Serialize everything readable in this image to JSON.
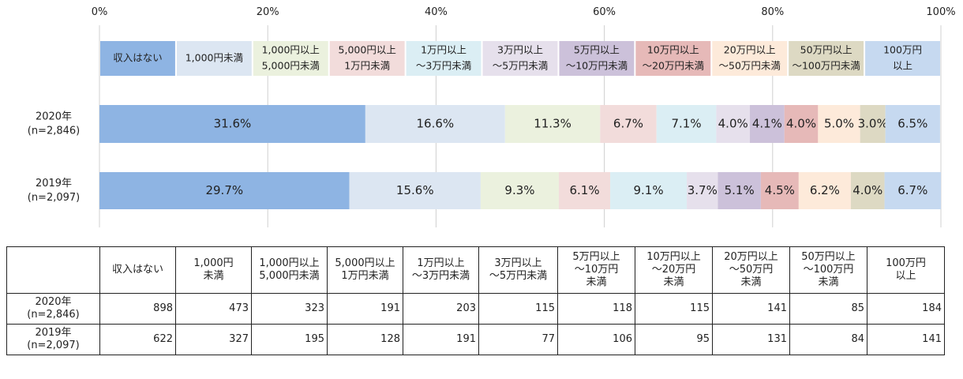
{
  "chart_data": {
    "type": "bar",
    "orientation": "horizontal",
    "stacked": true,
    "percent": true,
    "xlim": [
      0,
      100
    ],
    "x_ticks": [
      "0%",
      "20%",
      "40%",
      "60%",
      "80%",
      "100%"
    ],
    "grid": true,
    "legend_position": "top",
    "categories": [
      "2020年\n(n=2,846)",
      "2019年\n(n=2,097)"
    ],
    "series": [
      {
        "name": "収入はない",
        "values": [
          31.6,
          29.7
        ],
        "labels": [
          "31.6%",
          "29.7%"
        ],
        "color": "#8EB4E3"
      },
      {
        "name": "1,000円未満",
        "values": [
          16.6,
          15.6
        ],
        "labels": [
          "16.6%",
          "15.6%"
        ],
        "color": "#DCE6F2"
      },
      {
        "name": "1,000円以上\n5,000円未満",
        "values": [
          11.3,
          9.3
        ],
        "labels": [
          "11.3%",
          "9.3%"
        ],
        "color": "#EBF1DE"
      },
      {
        "name": "5,000円以上\n1万円未満",
        "values": [
          6.7,
          6.1
        ],
        "labels": [
          "6.7%",
          "6.1%"
        ],
        "color": "#F2DCDB"
      },
      {
        "name": "1万円以上\n〜3万円未満",
        "values": [
          7.1,
          9.1
        ],
        "labels": [
          "7.1%",
          "9.1%"
        ],
        "color": "#DBEEF4"
      },
      {
        "name": "3万円以上\n〜5万円未満",
        "values": [
          4.0,
          3.7
        ],
        "labels": [
          "4.0%",
          "3.7%"
        ],
        "color": "#E6E0EC"
      },
      {
        "name": "5万円以上\n〜10万円未満",
        "values": [
          4.1,
          5.1
        ],
        "labels": [
          "4.1%",
          "5.1%"
        ],
        "color": "#CCC1DA"
      },
      {
        "name": "10万円以上\n〜20万円未満",
        "values": [
          4.0,
          4.5
        ],
        "labels": [
          "4.0%",
          "4.5%"
        ],
        "color": "#E6B9B8"
      },
      {
        "name": "20万円以上\n〜50万円未満",
        "values": [
          5.0,
          6.2
        ],
        "labels": [
          "5.0%",
          "6.2%"
        ],
        "color": "#FDEADA"
      },
      {
        "name": "50万円以上\n〜100万円未満",
        "values": [
          3.0,
          4.0
        ],
        "labels": [
          "3.0%",
          "4.0%"
        ],
        "color": "#DDD9C3"
      },
      {
        "name": "100万円\n以上",
        "values": [
          6.5,
          6.7
        ],
        "labels": [
          "6.5%",
          "6.7%"
        ],
        "color": "#C6D9F0"
      }
    ]
  },
  "table": {
    "headers": [
      "",
      "収入はない",
      "1,000円\n未満",
      "1,000円以上\n5,000円未満",
      "5,000円以上\n1万円未満",
      "1万円以上\n〜3万円未満",
      "3万円以上\n〜5万円未満",
      "5万円以上\n〜10万円\n未満",
      "10万円以上\n〜20万円\n未満",
      "20万円以上\n〜50万円\n未満",
      "50万円以上\n〜100万円\n未満",
      "100万円\n以上"
    ],
    "rows": [
      {
        "label": "2020年\n(n=2,846)",
        "values": [
          "898",
          "473",
          "323",
          "191",
          "203",
          "115",
          "118",
          "115",
          "141",
          "85",
          "184"
        ]
      },
      {
        "label": "2019年\n(n=2,097)",
        "values": [
          "622",
          "327",
          "195",
          "128",
          "191",
          "77",
          "106",
          "95",
          "131",
          "84",
          "141"
        ]
      }
    ]
  }
}
